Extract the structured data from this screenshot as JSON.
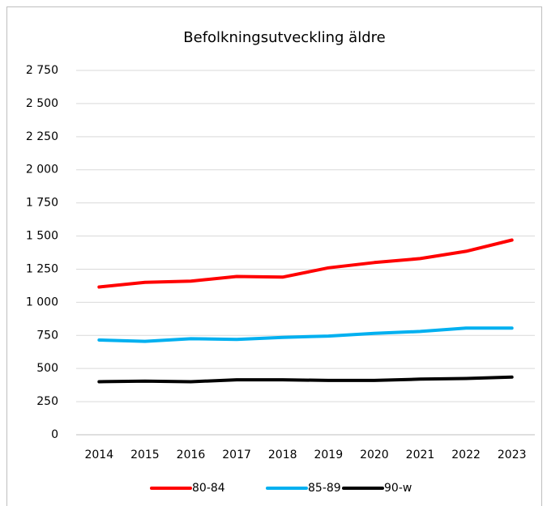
{
  "chart_data": {
    "type": "line",
    "title": "Befolkningsutveckling äldre",
    "categories": [
      "2014",
      "2015",
      "2016",
      "2017",
      "2018",
      "2019",
      "2020",
      "2021",
      "2022",
      "2023"
    ],
    "series": [
      {
        "name": "80-84",
        "color": "#ff0000",
        "values": [
          1115,
          1150,
          1160,
          1195,
          1190,
          1260,
          1300,
          1330,
          1385,
          1470
        ]
      },
      {
        "name": "85-89",
        "color": "#00b0f0",
        "values": [
          715,
          705,
          725,
          720,
          735,
          745,
          765,
          780,
          805,
          805
        ]
      },
      {
        "name": "90-w",
        "color": "#000000",
        "values": [
          400,
          405,
          400,
          415,
          415,
          410,
          410,
          420,
          425,
          435
        ]
      }
    ],
    "ylim": [
      0,
      2750
    ],
    "yticks": [
      0,
      250,
      500,
      750,
      {
        "value": 1000,
        "label": "1 000"
      },
      {
        "value": 1250,
        "label": "1 250"
      },
      {
        "value": 1500,
        "label": "1 500"
      },
      {
        "value": 1750,
        "label": "1 750"
      },
      {
        "value": 2000,
        "label": "2 000"
      },
      {
        "value": 2250,
        "label": "2 250"
      },
      {
        "value": 2500,
        "label": "2 500"
      },
      {
        "value": 2750,
        "label": "2 750"
      }
    ],
    "grid": true,
    "legend": "bottom"
  }
}
